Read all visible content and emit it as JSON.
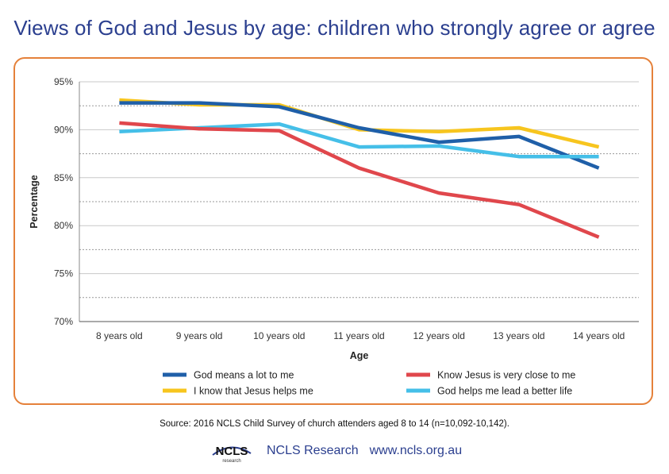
{
  "title": "Views of God and Jesus by age: children who strongly agree or agree",
  "source": "Source: 2016 NCLS Child Survey of church attenders aged 8 to 14 (n=10,092-10,142).",
  "footer": {
    "logo_text": "NCLS",
    "logo_subtext": "research",
    "org": "NCLS Research",
    "url": "www.ncls.org.au"
  },
  "chart_data": {
    "type": "line",
    "xlabel": "Age",
    "ylabel": "Percentage",
    "categories": [
      "8 years old",
      "9 years old",
      "10 years old",
      "11 years old",
      "12 years old",
      "13 years old",
      "14 years old"
    ],
    "ylim": [
      70,
      95
    ],
    "yticks": [
      70,
      75,
      80,
      85,
      90,
      95
    ],
    "ytick_labels": [
      "70%",
      "75%",
      "80%",
      "85%",
      "90%",
      "95%"
    ],
    "grid": true,
    "legend_position": "bottom",
    "series": [
      {
        "name": "God means a lot to me",
        "color": "#1f5fa8",
        "values": [
          92.8,
          92.8,
          92.4,
          90.2,
          88.7,
          89.3,
          86.0
        ]
      },
      {
        "name": "Know Jesus is very close to me",
        "color": "#e0474c",
        "values": [
          90.7,
          90.1,
          89.9,
          86.0,
          83.4,
          82.2,
          78.8
        ]
      },
      {
        "name": "I know that Jesus helps me",
        "color": "#f7c51e",
        "values": [
          93.1,
          92.6,
          92.6,
          90.0,
          89.8,
          90.2,
          88.2
        ]
      },
      {
        "name": "God helps me lead a better life",
        "color": "#45bfe8",
        "values": [
          89.8,
          90.2,
          90.6,
          88.2,
          88.3,
          87.2,
          87.2
        ]
      }
    ]
  }
}
